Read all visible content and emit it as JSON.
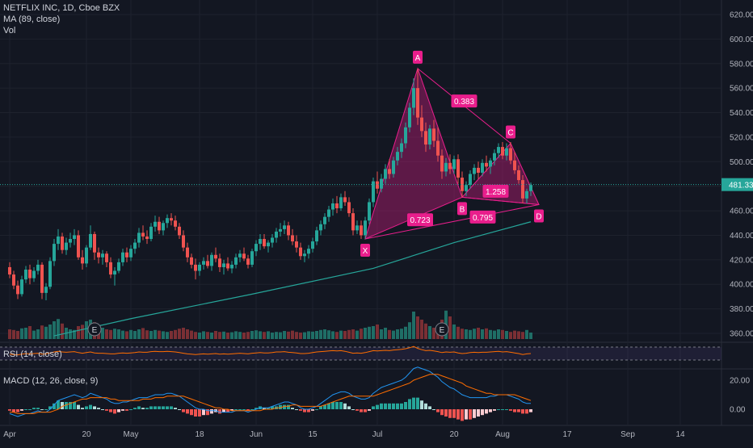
{
  "header": {
    "symbol_line": "NETFLIX INC, 1D, Cboe BZX",
    "ma_label": "MA (89, close)",
    "vol_label": "Vol"
  },
  "panes": {
    "rsi_label": "RSI (14, close)",
    "macd_label": "MACD (12, 26, close, 9)"
  },
  "colors": {
    "up": "#26a69a",
    "down": "#ef5350",
    "harmonic": "#e91e8c",
    "ma": "#26a69a",
    "macd": "#2196f3",
    "signal": "#ff6d00",
    "rsi": "#ff6d00",
    "background": "#131722"
  },
  "chart_data": {
    "type": "candlestick",
    "price_axis": {
      "min": 360,
      "max": 620,
      "ticks": [
        360,
        380,
        400,
        420,
        440,
        460,
        480,
        500,
        520,
        540,
        560,
        580,
        600,
        620
      ]
    },
    "last_price_label": "481.33",
    "last_price": 481.33,
    "x_tick_labels": [
      {
        "label": "Apr",
        "day": 0
      },
      {
        "label": "20",
        "day": 19
      },
      {
        "label": "May",
        "day": 30
      },
      {
        "label": "18",
        "day": 47
      },
      {
        "label": "Jun",
        "day": 61
      },
      {
        "label": "15",
        "day": 75
      },
      {
        "label": "Jul",
        "day": 91
      },
      {
        "label": "20",
        "day": 110
      },
      {
        "label": "Aug",
        "day": 122
      },
      {
        "label": "17",
        "day": 138
      },
      {
        "label": "Sep",
        "day": 153
      },
      {
        "label": "14",
        "day": 166
      }
    ],
    "earnings_markers": [
      {
        "label": "E",
        "day": 21
      },
      {
        "label": "E",
        "day": 107
      }
    ],
    "harmonic_pattern": {
      "points": [
        {
          "label": "X",
          "day": 88,
          "price": 437
        },
        {
          "label": "A",
          "day": 101,
          "price": 576
        },
        {
          "label": "B",
          "day": 112,
          "price": 471
        },
        {
          "label": "C",
          "day": 124,
          "price": 515
        },
        {
          "label": "D",
          "day": 131,
          "price": 465
        }
      ],
      "ratios": [
        {
          "label": "0.383",
          "between": "A-C"
        },
        {
          "label": "0.723",
          "between": "X-B"
        },
        {
          "label": "0.795",
          "between": "B-D"
        },
        {
          "label": "1.258",
          "between": "B-D"
        }
      ]
    },
    "macd_axis": {
      "ticks": [
        "20.00",
        "0.00"
      ]
    },
    "candles": [
      [
        0,
        414,
        418,
        405,
        408
      ],
      [
        1,
        408,
        411,
        396,
        399
      ],
      [
        2,
        399,
        403,
        388,
        392
      ],
      [
        3,
        392,
        407,
        390,
        404
      ],
      [
        4,
        404,
        415,
        401,
        412
      ],
      [
        5,
        412,
        416,
        400,
        405
      ],
      [
        6,
        405,
        414,
        402,
        411
      ],
      [
        7,
        411,
        420,
        408,
        416
      ],
      [
        8,
        416,
        418,
        388,
        393
      ],
      [
        9,
        393,
        401,
        387,
        398
      ],
      [
        10,
        398,
        422,
        396,
        419
      ],
      [
        11,
        419,
        437,
        415,
        433
      ],
      [
        12,
        433,
        445,
        428,
        439
      ],
      [
        13,
        439,
        442,
        425,
        428
      ],
      [
        14,
        428,
        438,
        424,
        434
      ],
      [
        15,
        434,
        442,
        430,
        437
      ],
      [
        16,
        437,
        445,
        432,
        440
      ],
      [
        17,
        440,
        444,
        420,
        422
      ],
      [
        18,
        422,
        428,
        412,
        417
      ],
      [
        19,
        417,
        432,
        414,
        430
      ],
      [
        20,
        430,
        448,
        428,
        441
      ],
      [
        21,
        441,
        443,
        420,
        426
      ],
      [
        22,
        426,
        430,
        417,
        422
      ],
      [
        23,
        422,
        428,
        416,
        425
      ],
      [
        24,
        425,
        427,
        414,
        418
      ],
      [
        25,
        418,
        422,
        405,
        408
      ],
      [
        26,
        408,
        414,
        399,
        411
      ],
      [
        27,
        411,
        421,
        409,
        418
      ],
      [
        28,
        418,
        429,
        415,
        426
      ],
      [
        29,
        426,
        430,
        418,
        422
      ],
      [
        30,
        422,
        432,
        419,
        429
      ],
      [
        31,
        429,
        437,
        425,
        434
      ],
      [
        32,
        434,
        446,
        430,
        442
      ],
      [
        33,
        442,
        448,
        436,
        439
      ],
      [
        34,
        439,
        444,
        433,
        437
      ],
      [
        35,
        437,
        450,
        435,
        447
      ],
      [
        36,
        447,
        456,
        443,
        451
      ],
      [
        37,
        451,
        455,
        441,
        444
      ],
      [
        38,
        444,
        452,
        440,
        450
      ],
      [
        39,
        450,
        457,
        446,
        454
      ],
      [
        40,
        454,
        458,
        448,
        452
      ],
      [
        41,
        452,
        456,
        444,
        447
      ],
      [
        42,
        447,
        450,
        437,
        440
      ],
      [
        43,
        440,
        444,
        427,
        430
      ],
      [
        44,
        430,
        434,
        418,
        422
      ],
      [
        45,
        422,
        425,
        413,
        416
      ],
      [
        46,
        416,
        421,
        404,
        411
      ],
      [
        47,
        411,
        418,
        407,
        416
      ],
      [
        48,
        416,
        422,
        412,
        419
      ],
      [
        49,
        419,
        424,
        413,
        415
      ],
      [
        50,
        415,
        426,
        411,
        424
      ],
      [
        51,
        424,
        430,
        418,
        421
      ],
      [
        52,
        421,
        425,
        410,
        414
      ],
      [
        53,
        414,
        420,
        408,
        417
      ],
      [
        54,
        417,
        422,
        411,
        413
      ],
      [
        55,
        413,
        419,
        409,
        416
      ],
      [
        56,
        416,
        425,
        413,
        422
      ],
      [
        57,
        422,
        428,
        418,
        425
      ],
      [
        58,
        425,
        430,
        419,
        421
      ],
      [
        59,
        421,
        424,
        413,
        416
      ],
      [
        60,
        416,
        429,
        414,
        427
      ],
      [
        61,
        427,
        436,
        423,
        433
      ],
      [
        62,
        433,
        441,
        428,
        437
      ],
      [
        63,
        437,
        441,
        429,
        431
      ],
      [
        64,
        431,
        436,
        426,
        434
      ],
      [
        65,
        434,
        441,
        430,
        438
      ],
      [
        66,
        438,
        446,
        434,
        443
      ],
      [
        67,
        443,
        450,
        439,
        445
      ],
      [
        68,
        445,
        452,
        441,
        448
      ],
      [
        69,
        448,
        451,
        436,
        440
      ],
      [
        70,
        440,
        445,
        432,
        435
      ],
      [
        71,
        435,
        440,
        426,
        430
      ],
      [
        72,
        430,
        434,
        420,
        423
      ],
      [
        73,
        423,
        428,
        418,
        425
      ],
      [
        74,
        425,
        432,
        421,
        429
      ],
      [
        75,
        429,
        438,
        426,
        435
      ],
      [
        76,
        435,
        447,
        432,
        444
      ],
      [
        77,
        444,
        452,
        440,
        449
      ],
      [
        78,
        449,
        458,
        445,
        455
      ],
      [
        79,
        455,
        464,
        451,
        461
      ],
      [
        80,
        461,
        470,
        456,
        466
      ],
      [
        81,
        466,
        472,
        458,
        462
      ],
      [
        82,
        462,
        474,
        460,
        471
      ],
      [
        83,
        471,
        476,
        464,
        467
      ],
      [
        84,
        467,
        471,
        455,
        458
      ],
      [
        85,
        458,
        462,
        440,
        444
      ],
      [
        86,
        444,
        452,
        441,
        448
      ],
      [
        87,
        448,
        452,
        437,
        440
      ],
      [
        88,
        440,
        455,
        437,
        452
      ],
      [
        89,
        452,
        470,
        449,
        467
      ],
      [
        90,
        467,
        487,
        463,
        484
      ],
      [
        91,
        484,
        492,
        474,
        478
      ],
      [
        92,
        478,
        490,
        475,
        486
      ],
      [
        93,
        486,
        498,
        482,
        494
      ],
      [
        94,
        494,
        502,
        486,
        490
      ],
      [
        95,
        490,
        504,
        487,
        501
      ],
      [
        96,
        501,
        512,
        497,
        508
      ],
      [
        97,
        508,
        519,
        503,
        515
      ],
      [
        98,
        515,
        532,
        511,
        528
      ],
      [
        99,
        528,
        548,
        524,
        544
      ],
      [
        100,
        544,
        568,
        538,
        560
      ],
      [
        101,
        560,
        576,
        530,
        536
      ],
      [
        102,
        536,
        546,
        520,
        525
      ],
      [
        103,
        525,
        532,
        508,
        514
      ],
      [
        104,
        514,
        530,
        510,
        527
      ],
      [
        105,
        527,
        534,
        512,
        517
      ],
      [
        106,
        517,
        528,
        500,
        505
      ],
      [
        107,
        505,
        510,
        486,
        492
      ],
      [
        108,
        492,
        503,
        488,
        499
      ],
      [
        109,
        499,
        506,
        490,
        494
      ],
      [
        110,
        494,
        505,
        490,
        502
      ],
      [
        111,
        502,
        506,
        482,
        487
      ],
      [
        112,
        487,
        492,
        471,
        476
      ],
      [
        113,
        476,
        484,
        472,
        481
      ],
      [
        114,
        481,
        493,
        478,
        490
      ],
      [
        115,
        490,
        498,
        485,
        495
      ],
      [
        116,
        495,
        500,
        486,
        491
      ],
      [
        117,
        491,
        502,
        488,
        499
      ],
      [
        118,
        499,
        505,
        492,
        496
      ],
      [
        119,
        496,
        503,
        490,
        501
      ],
      [
        120,
        501,
        510,
        497,
        507
      ],
      [
        121,
        507,
        515,
        503,
        512
      ],
      [
        122,
        512,
        516,
        502,
        505
      ],
      [
        123,
        505,
        515,
        501,
        511
      ],
      [
        124,
        511,
        516,
        498,
        501
      ],
      [
        125,
        501,
        508,
        490,
        493
      ],
      [
        126,
        493,
        497,
        482,
        485
      ],
      [
        127,
        485,
        489,
        466,
        470
      ],
      [
        128,
        470,
        478,
        466,
        476
      ],
      [
        129,
        476,
        483,
        472,
        481
      ]
    ],
    "volume": [
      30,
      28,
      25,
      33,
      35,
      40,
      26,
      30,
      42,
      38,
      45,
      55,
      62,
      48,
      35,
      30,
      28,
      40,
      44,
      55,
      60,
      52,
      38,
      35,
      30,
      28,
      32,
      30,
      26,
      24,
      28,
      25,
      30,
      34,
      27,
      25,
      28,
      26,
      24,
      22,
      25,
      28,
      32,
      35,
      30,
      26,
      22,
      20,
      24,
      22,
      20,
      25,
      22,
      23,
      20,
      21,
      24,
      22,
      20,
      22,
      25,
      27,
      24,
      22,
      24,
      20,
      22,
      21,
      25,
      23,
      26,
      22,
      20,
      21,
      24,
      23,
      25,
      28,
      30,
      27,
      24,
      22,
      26,
      25,
      28,
      30,
      26,
      32,
      35,
      38,
      40,
      45,
      30,
      35,
      28,
      26,
      30,
      32,
      38,
      52,
      85,
      70,
      60,
      48,
      40,
      35,
      30,
      60,
      88,
      70,
      45,
      38,
      32,
      30,
      28,
      32,
      35,
      30,
      33,
      28,
      26,
      30,
      28,
      25,
      22,
      26,
      24,
      22,
      28,
      20
    ],
    "ma89": [
      [
        11,
        358
      ],
      [
        30,
        372
      ],
      [
        60,
        392
      ],
      [
        90,
        413
      ],
      [
        110,
        434
      ],
      [
        129,
        451
      ]
    ],
    "rsi": [
      48,
      47,
      46,
      48,
      50,
      49,
      50,
      51,
      48,
      49,
      52,
      55,
      57,
      55,
      54,
      55,
      56,
      53,
      51,
      53,
      55,
      52,
      51,
      51,
      50,
      49,
      49,
      51,
      52,
      51,
      52,
      53,
      55,
      54,
      54,
      56,
      57,
      56,
      56,
      57,
      56,
      55,
      53,
      51,
      49,
      48,
      47,
      48,
      49,
      48,
      49,
      50,
      48,
      49,
      48,
      49,
      50,
      51,
      50,
      49,
      51,
      52,
      53,
      52,
      52,
      53,
      55,
      55,
      56,
      54,
      53,
      52,
      50,
      50,
      51,
      53,
      55,
      56,
      57,
      58,
      59,
      58,
      59,
      57,
      54,
      51,
      52,
      51,
      53,
      56,
      59,
      58,
      59,
      60,
      59,
      61,
      62,
      63,
      65,
      68,
      72,
      66,
      62,
      59,
      60,
      58,
      56,
      53,
      55,
      54,
      55,
      52,
      50,
      51,
      53,
      54,
      53,
      54,
      54,
      55,
      56,
      57,
      55,
      56,
      54,
      52,
      50,
      47,
      49,
      50
    ],
    "macd_line": [
      -3,
      -4,
      -5,
      -4,
      -3,
      -3,
      -2,
      -1,
      -2,
      -2,
      0,
      3,
      6,
      7,
      8,
      9,
      10,
      9,
      8,
      9,
      11,
      10,
      9,
      8,
      7,
      5,
      4,
      4,
      5,
      5,
      6,
      7,
      8,
      8,
      8,
      9,
      10,
      10,
      10,
      11,
      11,
      10,
      9,
      7,
      5,
      3,
      1,
      0,
      0,
      -1,
      -1,
      -1,
      -2,
      -2,
      -2,
      -2,
      -1,
      -1,
      -1,
      -2,
      -1,
      0,
      1,
      1,
      1,
      2,
      3,
      4,
      5,
      5,
      4,
      3,
      1,
      0,
      0,
      1,
      2,
      4,
      6,
      8,
      10,
      11,
      12,
      12,
      11,
      9,
      8,
      7,
      7,
      8,
      11,
      13,
      15,
      16,
      17,
      18,
      19,
      20,
      22,
      25,
      28,
      29,
      28,
      27,
      26,
      24,
      22,
      19,
      17,
      15,
      14,
      12,
      10,
      9,
      8,
      8,
      8,
      8,
      8,
      9,
      9,
      10,
      10,
      10,
      9,
      8,
      7,
      5,
      4,
      4
    ],
    "signal_line": [
      -2,
      -2,
      -3,
      -3,
      -3,
      -3,
      -3,
      -2,
      -2,
      -2,
      -2,
      -1,
      0,
      2,
      3,
      4,
      5,
      6,
      7,
      7,
      8,
      8,
      8,
      8,
      8,
      7,
      7,
      6,
      6,
      6,
      6,
      6,
      6,
      7,
      7,
      7,
      8,
      8,
      8,
      9,
      9,
      9,
      9,
      9,
      8,
      7,
      6,
      5,
      4,
      3,
      2,
      1,
      1,
      0,
      0,
      -1,
      -1,
      -1,
      -1,
      -1,
      -1,
      -1,
      -1,
      0,
      0,
      0,
      1,
      1,
      2,
      2,
      3,
      3,
      2,
      2,
      2,
      2,
      2,
      2,
      3,
      4,
      5,
      6,
      7,
      8,
      9,
      9,
      9,
      9,
      9,
      9,
      9,
      10,
      11,
      12,
      13,
      14,
      15,
      16,
      17,
      18,
      20,
      21,
      22,
      23,
      24,
      24,
      24,
      23,
      22,
      21,
      20,
      19,
      18,
      16,
      15,
      14,
      13,
      12,
      11,
      11,
      10,
      10,
      10,
      10,
      10,
      10,
      9,
      8,
      7,
      6
    ]
  }
}
